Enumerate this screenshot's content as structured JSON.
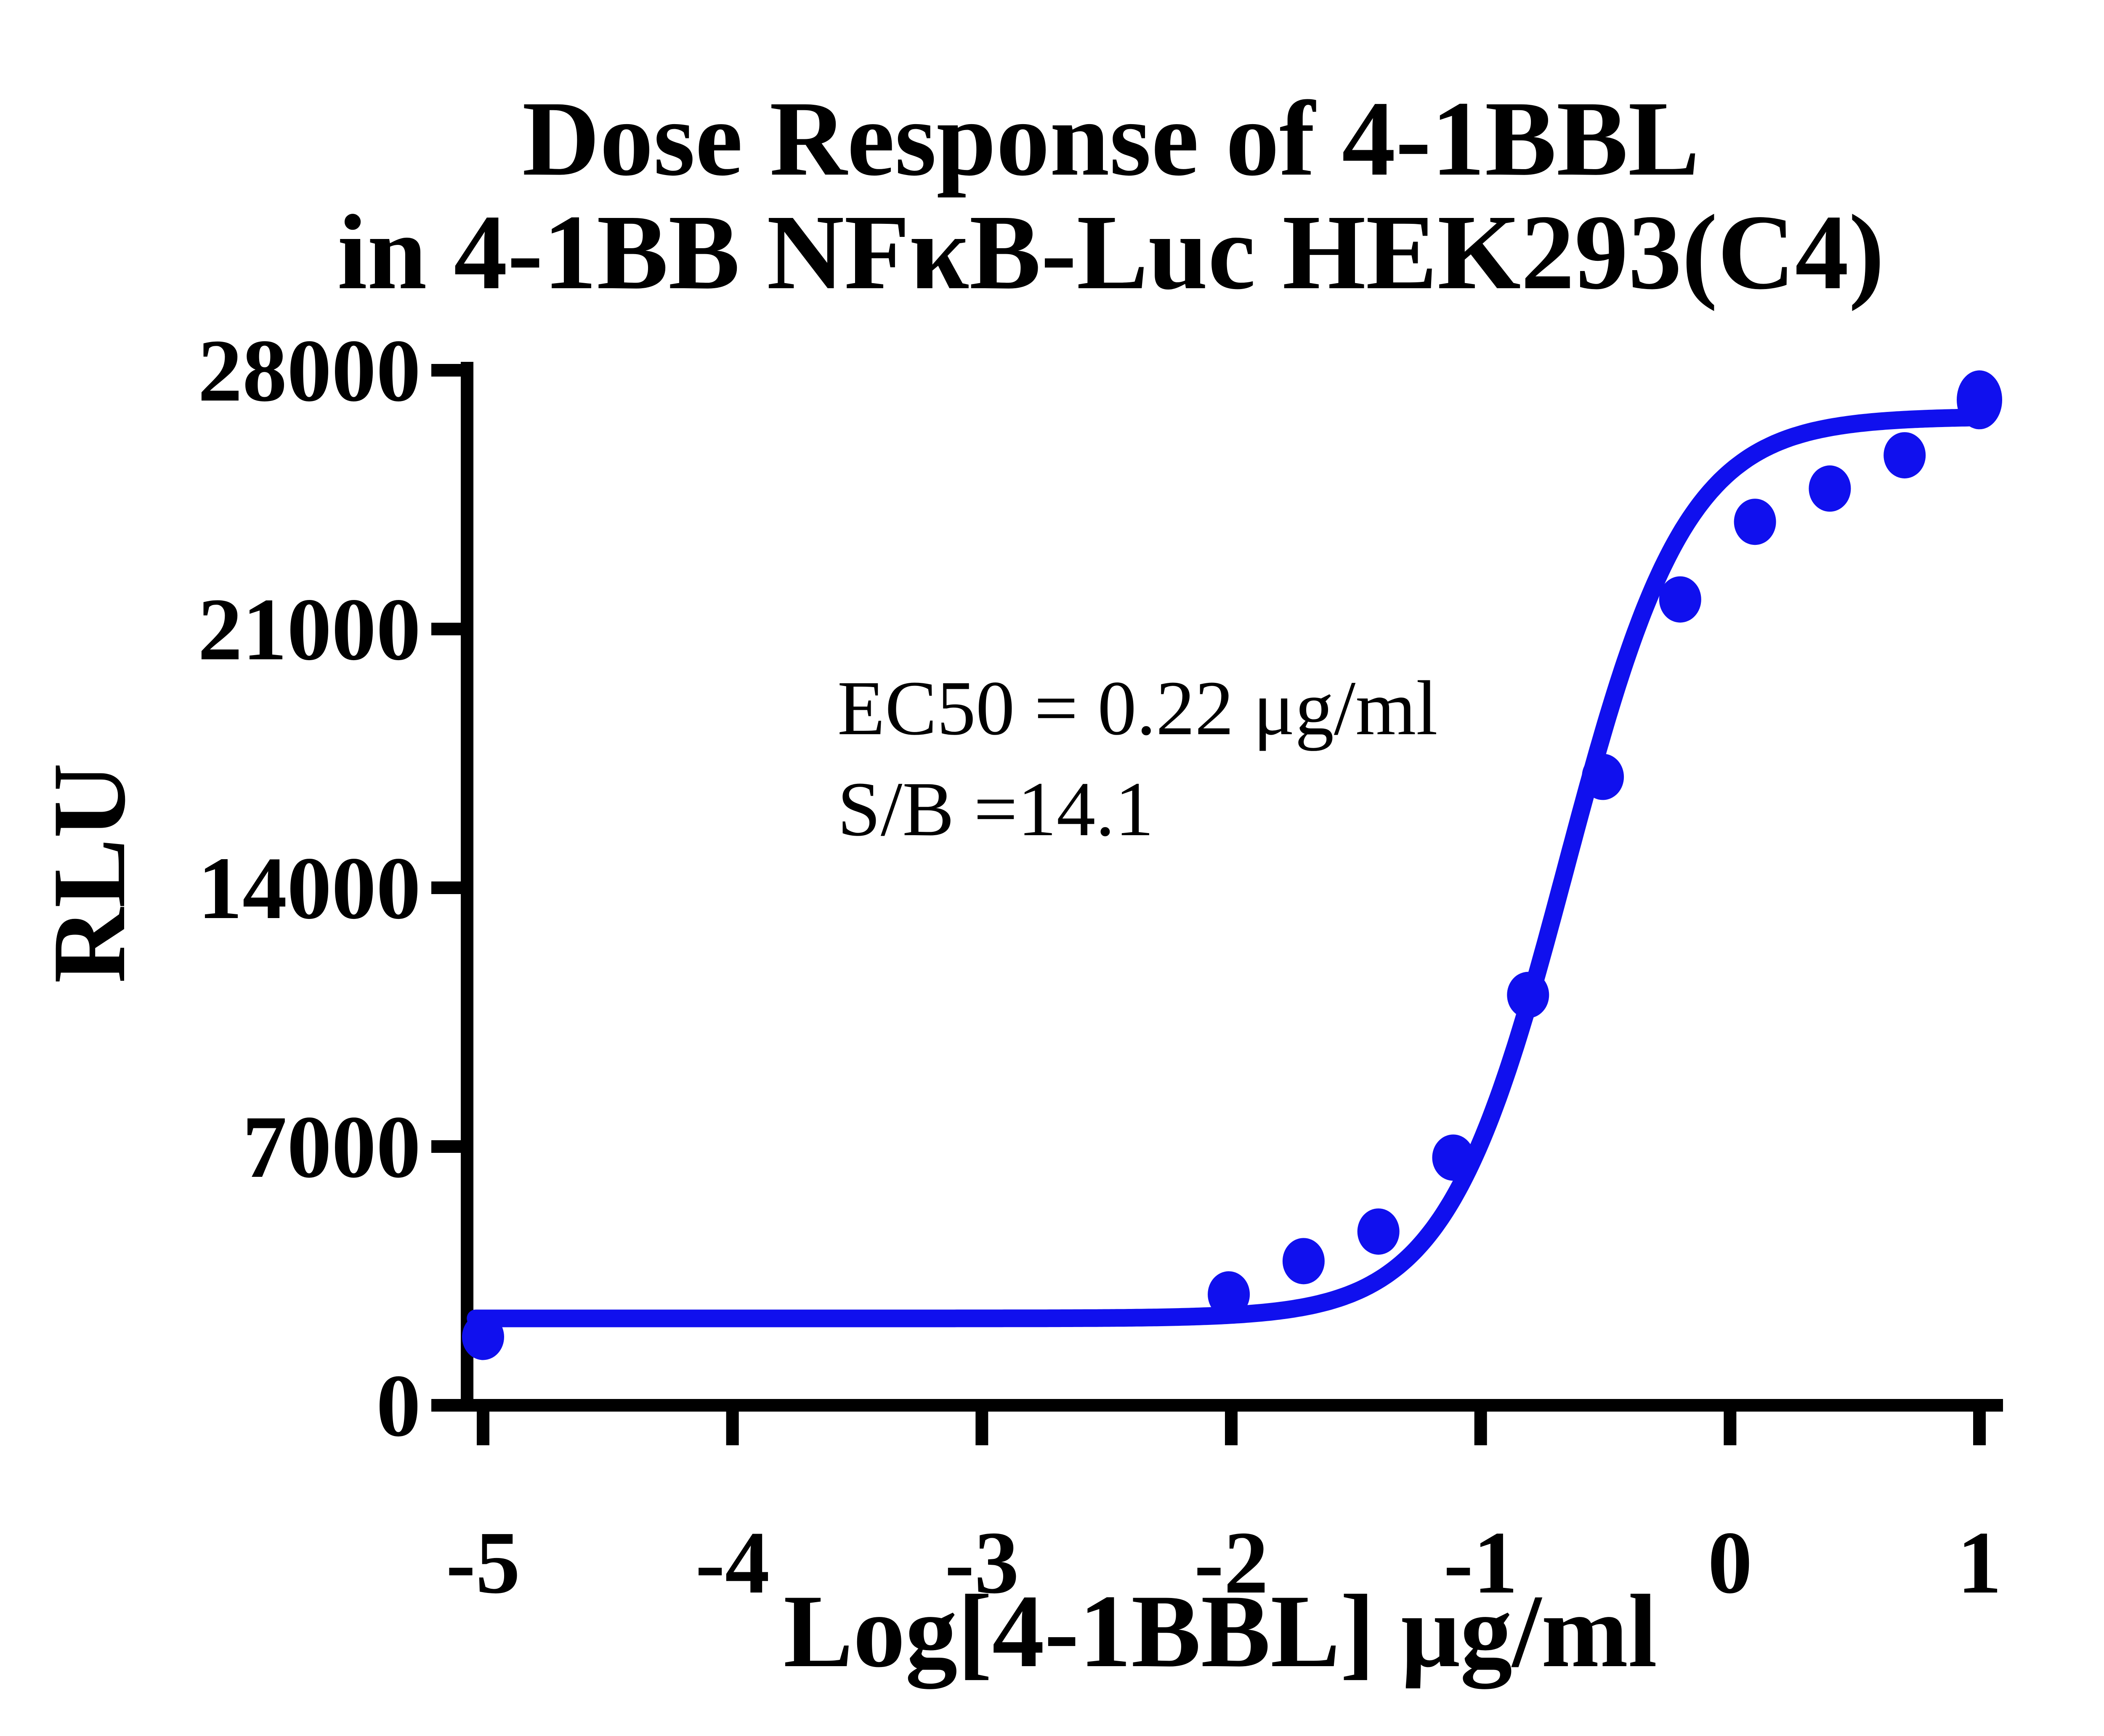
{
  "title": {
    "line1": "Dose Response of 4-1BBL",
    "line2": "in 4-1BB NFκB-Luc HEK293(C4)"
  },
  "annotation": {
    "ec50": "EC50 = 0.22 μg/ml",
    "sb": "S/B =14.1"
  },
  "axes": {
    "x": {
      "label": "Log[4-1BBL] μg/ml",
      "ticks": [
        "-5",
        "-4",
        "-3",
        "-2",
        "-1",
        "0",
        "1"
      ],
      "min": -5,
      "max": 1
    },
    "y": {
      "label": "RLU",
      "ticks": [
        "0",
        "7000",
        "14000",
        "21000",
        "28000"
      ],
      "min": 0,
      "max": 28000
    }
  },
  "chart_data": {
    "type": "scatter",
    "title": "Dose Response of 4-1BBL in 4-1BB NFκB-Luc HEK293(C4)",
    "xlabel": "Log[4-1BBL] μg/ml",
    "ylabel": "RLU",
    "xlim": [
      -5,
      1
    ],
    "ylim": [
      0,
      28000
    ],
    "grid": false,
    "legend": "none",
    "series": [
      {
        "name": "4-1BBL",
        "x": [
          -5.0,
          -2.01,
          -1.71,
          -1.41,
          -1.11,
          -0.81,
          -0.51,
          -0.2,
          0.1,
          0.4,
          0.7,
          1.0
        ],
        "y": [
          1850,
          3000,
          3900,
          4700,
          6700,
          11100,
          17000,
          21800,
          23900,
          24800,
          25700,
          27200
        ]
      }
    ],
    "fit_curve": {
      "model": "4PL-sigmoid",
      "bottom": 2350,
      "top": 26750,
      "log_ec50": -0.658,
      "hill": 1.8
    },
    "ec50_ug_ml": 0.22,
    "signal_to_background": 14.1,
    "colors": {
      "series": "#1010EE",
      "axis": "#000000",
      "background": "#FFFFFF"
    }
  }
}
